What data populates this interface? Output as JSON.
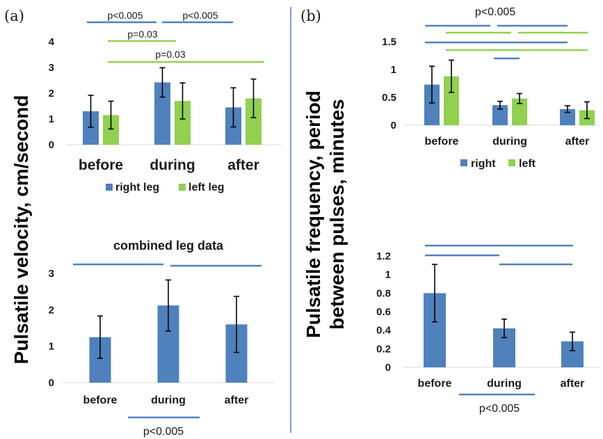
{
  "panel_labels": {
    "a": "(a)",
    "b": "(b)"
  },
  "ylabel_a": "Pulsatile velocity, cm/second",
  "ylabel_b_line1": "Pulsatile frequency, period",
  "ylabel_b_line2": "between pulses, minutes",
  "colors": {
    "right": "#4f81bd",
    "left": "#92d050",
    "divider": "#4f81bd"
  },
  "chart_data": [
    {
      "id": "a_top",
      "type": "bar",
      "title": "",
      "categories": [
        "before",
        "during",
        "after"
      ],
      "series": [
        {
          "name": "right leg",
          "values": [
            1.3,
            2.42,
            1.45
          ],
          "errors": [
            0.62,
            0.57,
            0.76
          ],
          "color": "#4f81bd"
        },
        {
          "name": "left leg",
          "values": [
            1.15,
            1.7,
            1.8
          ],
          "errors": [
            0.54,
            0.7,
            0.75
          ],
          "color": "#92d050"
        }
      ],
      "ylim": [
        0,
        4
      ],
      "yticks": [
        "0",
        "1",
        "2",
        "3",
        "4"
      ],
      "legend": [
        "right leg",
        "left leg"
      ],
      "annotations": [
        "p<0.005",
        "p<0.005",
        "p=0.03",
        "p=0.03"
      ]
    },
    {
      "id": "a_bottom",
      "type": "bar",
      "title": "combined leg data",
      "categories": [
        "before",
        "during",
        "after"
      ],
      "series": [
        {
          "name": "",
          "values": [
            1.25,
            2.12,
            1.6
          ],
          "errors": [
            0.58,
            0.7,
            0.77
          ],
          "color": "#4f81bd"
        }
      ],
      "ylim": [
        0,
        3
      ],
      "yticks": [
        "0",
        "1",
        "2",
        "3"
      ],
      "annotations": [
        "p<0.005"
      ]
    },
    {
      "id": "b_top",
      "type": "bar",
      "title": "",
      "categories": [
        "before",
        "during",
        "after"
      ],
      "series": [
        {
          "name": "right",
          "values": [
            0.73,
            0.36,
            0.29
          ],
          "errors": [
            0.33,
            0.07,
            0.06
          ],
          "color": "#4f81bd"
        },
        {
          "name": "left",
          "values": [
            0.88,
            0.48,
            0.27
          ],
          "errors": [
            0.29,
            0.09,
            0.15
          ],
          "color": "#92d050"
        }
      ],
      "ylim": [
        0,
        1.5
      ],
      "yticks": [
        "0",
        "0.5",
        "1",
        "1.5"
      ],
      "legend": [
        "right",
        "left"
      ],
      "annotations": [
        "p<0.005"
      ]
    },
    {
      "id": "b_bottom",
      "type": "bar",
      "title": "",
      "categories": [
        "before",
        "during",
        "after"
      ],
      "series": [
        {
          "name": "",
          "values": [
            0.8,
            0.42,
            0.28
          ],
          "errors": [
            0.31,
            0.1,
            0.1
          ],
          "color": "#4f81bd"
        }
      ],
      "ylim": [
        0,
        1.2
      ],
      "yticks": [
        "0",
        "0.2",
        "0.4",
        "0.6",
        "0.8",
        "1",
        "1.2"
      ],
      "annotations": [
        "p<0.005"
      ]
    }
  ]
}
